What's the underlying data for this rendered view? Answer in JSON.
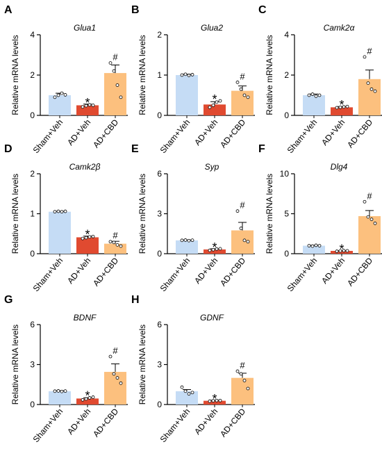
{
  "colors": {
    "sham": "#c5dcf5",
    "ad": "#e04a30",
    "cbd": "#fcc07e",
    "axis": "#000000"
  },
  "chart_data": [
    {
      "type": "bar",
      "panel_letter": "A",
      "title": "Glua1",
      "ylabel": "Relative mRNA levels",
      "categories": [
        "Sham+Veh",
        "AD+Veh",
        "AD+CBD"
      ],
      "values": [
        1.0,
        0.5,
        2.1
      ],
      "errors": [
        0.1,
        0.06,
        0.4
      ],
      "points": [
        [
          0.9,
          1.0,
          1.1,
          1.02
        ],
        [
          0.42,
          0.48,
          0.52,
          0.5
        ],
        [
          2.6,
          2.2,
          1.5,
          0.9
        ]
      ],
      "annotations": [
        "",
        "*",
        "#"
      ],
      "ylim": [
        0,
        4
      ],
      "yticks": [
        0,
        2,
        4
      ]
    },
    {
      "type": "bar",
      "panel_letter": "B",
      "title": "Glua2",
      "ylabel": "Relative mRNA levels",
      "categories": [
        "Sham+Veh",
        "AD+Veh",
        "AD+CBD"
      ],
      "values": [
        1.0,
        0.27,
        0.61
      ],
      "errors": [
        0.02,
        0.07,
        0.12
      ],
      "points": [
        [
          1.0,
          1.02,
          0.99,
          1.01
        ],
        [
          0.2,
          0.25,
          0.33,
          0.36
        ],
        [
          0.82,
          0.65,
          0.5,
          0.45
        ]
      ],
      "annotations": [
        "",
        "*",
        "#"
      ],
      "ylim": [
        0,
        2
      ],
      "yticks": [
        0,
        1,
        2
      ]
    },
    {
      "type": "bar",
      "panel_letter": "C",
      "title": "Camk2α",
      "ylabel": "Relative mRNA levels",
      "categories": [
        "Sham+Veh",
        "AD+Veh",
        "AD+CBD"
      ],
      "values": [
        1.0,
        0.4,
        1.8
      ],
      "errors": [
        0.06,
        0.04,
        0.45
      ],
      "points": [
        [
          1.0,
          1.05,
          0.95,
          1.0
        ],
        [
          0.38,
          0.4,
          0.42,
          0.44
        ],
        [
          2.9,
          1.6,
          1.3,
          1.2
        ]
      ],
      "annotations": [
        "",
        "*",
        "#"
      ],
      "ylim": [
        0,
        4
      ],
      "yticks": [
        0,
        2,
        4
      ]
    },
    {
      "type": "bar",
      "panel_letter": "D",
      "title": "Camk2β",
      "ylabel": "Relative mRNA levels",
      "categories": [
        "Sham+Veh",
        "AD+Veh",
        "AD+CBD"
      ],
      "values": [
        1.05,
        0.41,
        0.25
      ],
      "errors": [
        0.01,
        0.03,
        0.06
      ],
      "points": [
        [
          1.05,
          1.06,
          1.05,
          1.06
        ],
        [
          0.38,
          0.4,
          0.42,
          0.43
        ],
        [
          0.3,
          0.28,
          0.22,
          0.19
        ]
      ],
      "annotations": [
        "",
        "*",
        "#"
      ],
      "ylim": [
        0,
        2
      ],
      "yticks": [
        0,
        1,
        2
      ]
    },
    {
      "type": "bar",
      "panel_letter": "E",
      "title": "Syp",
      "ylabel": "Relative mRNA levels",
      "categories": [
        "Sham+Veh",
        "AD+Veh",
        "AD+CBD"
      ],
      "values": [
        1.0,
        0.32,
        1.75
      ],
      "errors": [
        0.03,
        0.05,
        0.6
      ],
      "points": [
        [
          1.0,
          1.02,
          0.98,
          1.01
        ],
        [
          0.25,
          0.3,
          0.35,
          0.37
        ],
        [
          3.2,
          1.9,
          1.0,
          0.9
        ]
      ],
      "annotations": [
        "",
        "*",
        "#"
      ],
      "ylim": [
        0,
        6
      ],
      "yticks": [
        0,
        3,
        6
      ]
    },
    {
      "type": "bar",
      "panel_letter": "F",
      "title": "Dlg4",
      "ylabel": "Relative mRNA levels",
      "categories": [
        "Sham+Veh",
        "AD+Veh",
        "AD+CBD"
      ],
      "values": [
        1.0,
        0.35,
        4.7
      ],
      "errors": [
        0.05,
        0.03,
        0.7
      ],
      "points": [
        [
          1.0,
          0.95,
          1.05,
          1.0
        ],
        [
          0.3,
          0.35,
          0.38,
          0.36
        ],
        [
          6.5,
          4.6,
          4.3,
          3.8
        ]
      ],
      "annotations": [
        "",
        "*",
        "#"
      ],
      "ylim": [
        0,
        10
      ],
      "yticks": [
        0,
        5,
        10
      ]
    },
    {
      "type": "bar",
      "panel_letter": "G",
      "title": "BDNF",
      "ylabel": "Relative mRNA levels",
      "categories": [
        "Sham+Veh",
        "AD+Veh",
        "AD+CBD"
      ],
      "values": [
        1.0,
        0.45,
        2.45
      ],
      "errors": [
        0.04,
        0.06,
        0.6
      ],
      "points": [
        [
          1.0,
          1.02,
          0.98,
          1.01
        ],
        [
          0.35,
          0.42,
          0.5,
          0.55
        ],
        [
          3.6,
          2.3,
          2.0,
          1.6
        ]
      ],
      "annotations": [
        "",
        "*",
        "#"
      ],
      "ylim": [
        0,
        6
      ],
      "yticks": [
        0,
        3,
        6
      ]
    },
    {
      "type": "bar",
      "panel_letter": "H",
      "title": "GDNF",
      "ylabel": "Relative mRNA levels",
      "categories": [
        "Sham+Veh",
        "AD+Veh",
        "AD+CBD"
      ],
      "values": [
        1.0,
        0.28,
        2.0
      ],
      "errors": [
        0.12,
        0.04,
        0.35
      ],
      "points": [
        [
          1.3,
          1.0,
          0.8,
          0.9
        ],
        [
          0.25,
          0.28,
          0.3,
          0.3
        ],
        [
          2.5,
          2.3,
          1.8,
          1.2
        ]
      ],
      "annotations": [
        "",
        "*",
        "#"
      ],
      "ylim": [
        0,
        6
      ],
      "yticks": [
        0,
        3,
        6
      ]
    }
  ]
}
